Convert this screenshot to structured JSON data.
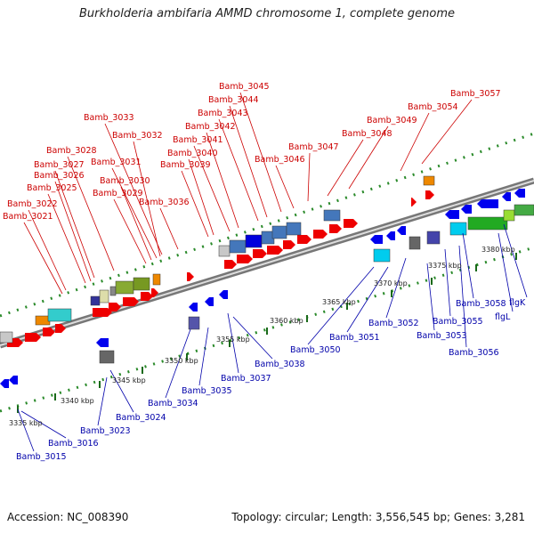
{
  "title": "Burkholderia ambifaria AMMD chromosome 1, complete genome",
  "accession": "Accession: NC_008390",
  "summary": "Topology: circular; Length: 3,556,545 bp; Genes: 3,281",
  "forward_genes": [
    "Bamb_3021",
    "Bamb_3022",
    "Bamb_3025",
    "Bamb_3026",
    "Bamb_3027",
    "Bamb_3028",
    "Bamb_3029",
    "Bamb_3030",
    "Bamb_3031",
    "Bamb_3032",
    "Bamb_3033",
    "Bamb_3036",
    "Bamb_3039",
    "Bamb_3040",
    "Bamb_3041",
    "Bamb_3042",
    "Bamb_3043",
    "Bamb_3044",
    "Bamb_3045",
    "Bamb_3046",
    "Bamb_3047",
    "Bamb_3048",
    "Bamb_3049",
    "Bamb_3054",
    "Bamb_3057"
  ],
  "reverse_genes": [
    "Bamb_3015",
    "Bamb_3016",
    "Bamb_3023",
    "Bamb_3024",
    "Bamb_3034",
    "Bamb_3035",
    "Bamb_3037",
    "Bamb_3038",
    "Bamb_3050",
    "Bamb_3051",
    "Bamb_3052",
    "Bamb_3053",
    "Bamb_3055",
    "Bamb_3056",
    "Bamb_3058",
    "flgL",
    "flgK"
  ],
  "scale_labels": [
    "3335 kbp",
    "3340 kbp",
    "3345 kbp",
    "3350 kbp",
    "3355 kbp",
    "3360 kbp",
    "3365 kbp",
    "3370 kbp",
    "3375 kbp",
    "3380 kbp"
  ],
  "colors": {
    "forward": "#cc0000",
    "reverse": "#0000aa",
    "backbone": "#888888"
  }
}
